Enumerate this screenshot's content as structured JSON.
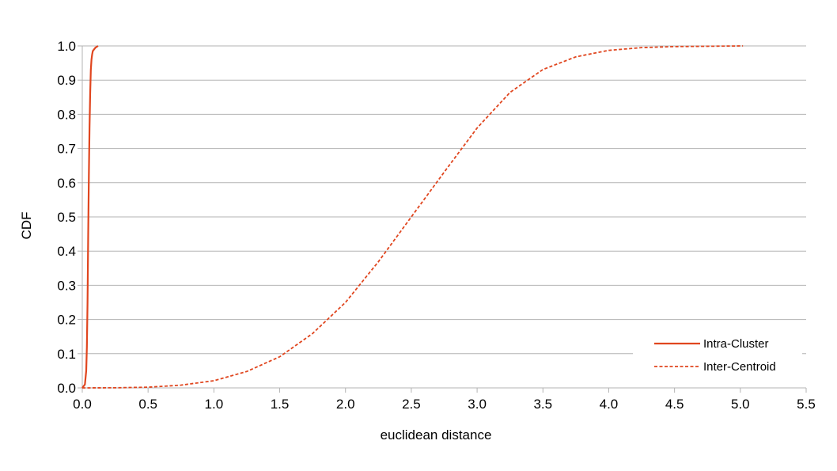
{
  "chart_data": {
    "type": "line",
    "title": "",
    "xlabel": "euclidean distance",
    "ylabel": "CDF",
    "xlim": [
      0,
      5.5
    ],
    "ylim": [
      0,
      1.0
    ],
    "x_ticks": [
      "0.0",
      "0.5",
      "1.0",
      "1.5",
      "2.0",
      "2.5",
      "3.0",
      "3.5",
      "4.0",
      "4.5",
      "5.0",
      "5.5"
    ],
    "y_ticks": [
      "0.0",
      "0.1",
      "0.2",
      "0.3",
      "0.4",
      "0.5",
      "0.6",
      "0.7",
      "0.8",
      "0.9",
      "1.0"
    ],
    "grid": "horizontal",
    "legend_position": "bottom-right",
    "series": [
      {
        "name": "Intra-Cluster",
        "style": "solid",
        "color": "#e0461f",
        "x": [
          0.0,
          0.02,
          0.03,
          0.035,
          0.04,
          0.045,
          0.05,
          0.055,
          0.06,
          0.065,
          0.07,
          0.075,
          0.08,
          0.09,
          0.1,
          0.12
        ],
        "y": [
          0.0,
          0.01,
          0.05,
          0.12,
          0.25,
          0.45,
          0.62,
          0.76,
          0.86,
          0.93,
          0.96,
          0.975,
          0.985,
          0.99,
          0.995,
          1.0
        ]
      },
      {
        "name": "Inter-Centroid",
        "style": "dashed",
        "color": "#e0461f",
        "x": [
          0.0,
          0.25,
          0.5,
          0.75,
          1.0,
          1.25,
          1.5,
          1.75,
          2.0,
          2.25,
          2.5,
          2.75,
          3.0,
          3.25,
          3.5,
          3.75,
          4.0,
          4.25,
          4.5,
          4.75,
          5.02
        ],
        "y": [
          0.0,
          0.0003,
          0.002,
          0.008,
          0.021,
          0.048,
          0.091,
          0.159,
          0.25,
          0.369,
          0.5,
          0.631,
          0.76,
          0.864,
          0.931,
          0.968,
          0.987,
          0.995,
          0.998,
          0.999,
          1.0
        ]
      }
    ]
  }
}
